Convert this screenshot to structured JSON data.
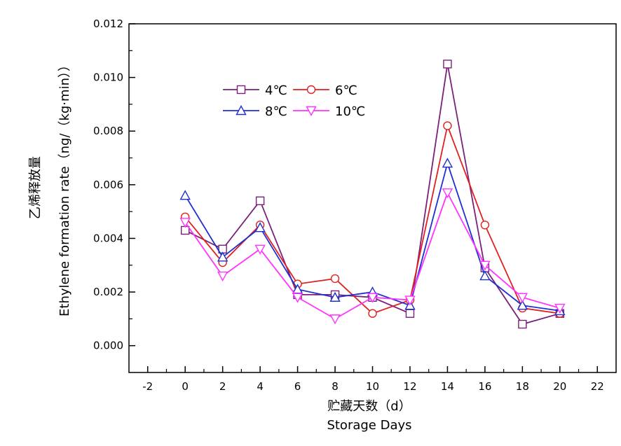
{
  "chart_data": {
    "type": "line",
    "title": "",
    "xlabel_cn": "贮藏天数（d）",
    "xlabel_en": "Storage Days",
    "ylabel_cn": "乙烯释放量",
    "ylabel_en": "Ethylene formation rate（ng/（kg·min））",
    "xlim": [
      -3,
      23
    ],
    "ylim": [
      -0.001,
      0.012
    ],
    "xticks": [
      -2,
      0,
      2,
      4,
      6,
      8,
      10,
      12,
      14,
      16,
      18,
      20,
      22
    ],
    "yticks": [
      0.0,
      0.002,
      0.004,
      0.006,
      0.008,
      0.01,
      0.012
    ],
    "ytick_labels": [
      "0.000",
      "0.002",
      "0.004",
      "0.006",
      "0.008",
      "0.010",
      "0.012"
    ],
    "x": [
      0,
      2,
      4,
      6,
      8,
      10,
      12,
      14,
      16,
      18,
      20
    ],
    "legend_position": "top-left",
    "grid": false,
    "series": [
      {
        "name": "4℃",
        "color": "#7b1f7b",
        "marker": "square",
        "values": [
          0.0043,
          0.0036,
          0.0054,
          0.0019,
          0.0019,
          0.0018,
          0.0012,
          0.0105,
          0.0029,
          0.0008,
          0.0012
        ]
      },
      {
        "name": "6℃",
        "color": "#e02020",
        "marker": "circle",
        "values": [
          0.0048,
          0.0031,
          0.0045,
          0.0023,
          0.0025,
          0.0012,
          0.0017,
          0.0082,
          0.0045,
          0.0014,
          0.0012
        ]
      },
      {
        "name": "8℃",
        "color": "#1f2fd0",
        "marker": "triangle-up",
        "values": [
          0.0056,
          0.0033,
          0.0044,
          0.0021,
          0.0018,
          0.002,
          0.0015,
          0.0068,
          0.0026,
          0.0015,
          0.0013
        ]
      },
      {
        "name": "10℃",
        "color": "#ff33ff",
        "marker": "triangle-down",
        "values": [
          0.0046,
          0.0026,
          0.0036,
          0.0018,
          0.001,
          0.0018,
          0.0017,
          0.0057,
          0.003,
          0.0018,
          0.0014
        ]
      }
    ]
  }
}
